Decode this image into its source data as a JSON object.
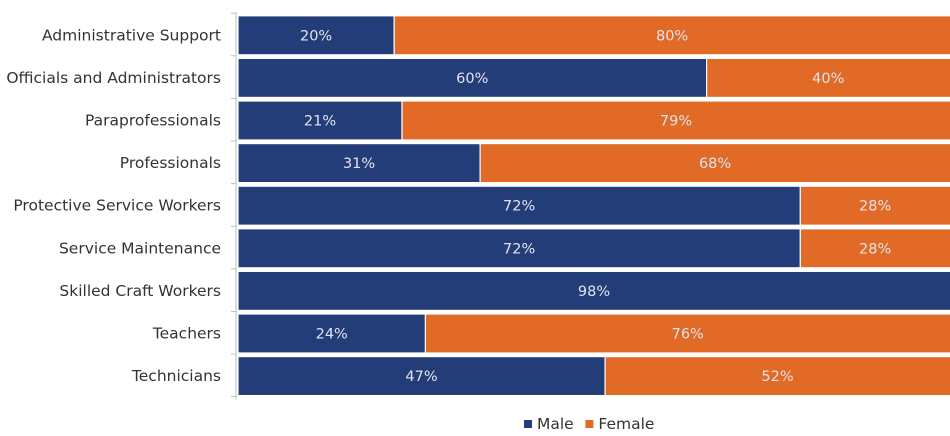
{
  "chart_data": {
    "type": "bar",
    "stacked": true,
    "orientation": "horizontal",
    "categories": [
      "Administrative Support",
      "Officials and Administrators",
      "Paraprofessionals",
      "Professionals",
      "Protective Service Workers",
      "Service Maintenance",
      "Skilled Craft Workers",
      "Teachers",
      "Technicians"
    ],
    "series": [
      {
        "name": "Male",
        "color": "#233d78",
        "values": [
          20,
          60,
          21,
          31,
          72,
          72,
          98,
          24,
          47
        ],
        "labels": [
          "20%",
          "60%",
          "21%",
          "31%",
          "72%",
          "72%",
          "98%",
          "24%",
          "47%"
        ]
      },
      {
        "name": "Female",
        "color": "#e06a26",
        "values": [
          80,
          40,
          79,
          68,
          28,
          28,
          2,
          76,
          52
        ],
        "labels": [
          "80%",
          "40%",
          "79%",
          "68%",
          "28%",
          "28%",
          "",
          "76%",
          "52%"
        ]
      }
    ],
    "xlim": [
      0,
      100
    ],
    "legend": "bottom",
    "grid": false,
    "title": "",
    "xlabel": "",
    "ylabel": ""
  }
}
